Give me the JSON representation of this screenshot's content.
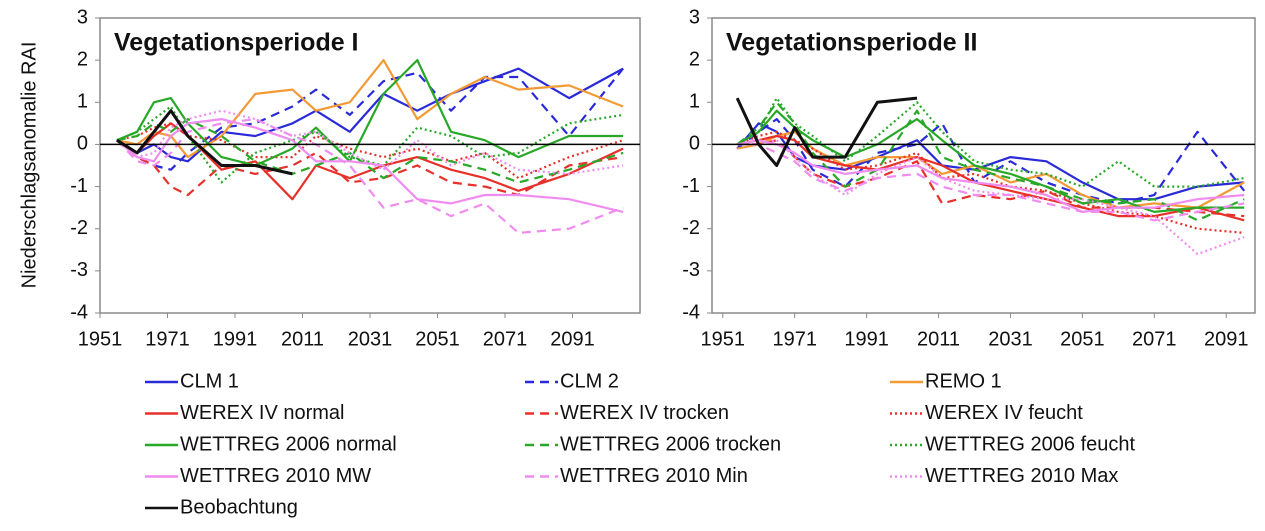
{
  "chart_data": [
    {
      "type": "line",
      "title": "Vegetationsperiode I",
      "ylabel": "Niederschlagsanomalie RAI",
      "x": [
        1956,
        1962,
        1967,
        1972,
        1977,
        1987,
        1997,
        2008,
        2015,
        2025,
        2035,
        2045,
        2055,
        2065,
        2075,
        2090,
        2106
      ],
      "xlim": [
        1951,
        2111
      ],
      "xticks": [
        1951,
        1971,
        1991,
        2011,
        2031,
        2051,
        2071,
        2091
      ],
      "ylim": [
        -4,
        3
      ],
      "yticks": [
        -4,
        -3,
        -2,
        -1,
        0,
        1,
        2,
        3
      ],
      "series": [
        {
          "name": "CLM 1",
          "color": "#2a2ad8",
          "dash": "solid",
          "values": [
            0.1,
            -0.2,
            0,
            -0.3,
            -0.4,
            0.3,
            0.2,
            0.5,
            0.8,
            0.3,
            1.2,
            0.8,
            1.2,
            1.5,
            1.8,
            1.1,
            1.8
          ]
        },
        {
          "name": "CLM 2",
          "color": "#2a2ad8",
          "dash": "dashed",
          "values": [
            0.1,
            -0.3,
            -0.5,
            -0.6,
            -0.2,
            0.4,
            0.5,
            0.9,
            1.3,
            0.7,
            1.5,
            1.7,
            0.8,
            1.6,
            1.6,
            0.2,
            1.8
          ]
        },
        {
          "name": "REMO 1",
          "color": "#f39a35",
          "dash": "solid",
          "values": [
            0.1,
            0,
            0.3,
            0.2,
            -0.3,
            0.2,
            1.2,
            1.3,
            0.8,
            1.0,
            2.0,
            0.6,
            1.2,
            1.6,
            1.3,
            1.4,
            0.9
          ]
        },
        {
          "name": "WEREX IV normal",
          "color": "#e8302a",
          "dash": "solid",
          "values": [
            0.1,
            -0.2,
            0.2,
            0.5,
            0.2,
            -0.6,
            -0.4,
            -1.3,
            -0.5,
            -0.8,
            -0.5,
            -0.3,
            -0.6,
            -0.8,
            -1.1,
            -0.7,
            -0.1
          ]
        },
        {
          "name": "WEREX IV trocken",
          "color": "#e8302a",
          "dash": "dashed",
          "values": [
            0.1,
            -0.3,
            -0.5,
            -1.0,
            -1.2,
            -0.5,
            -0.7,
            -0.5,
            -0.2,
            -0.9,
            -0.8,
            -0.5,
            -0.9,
            -1.0,
            -1.2,
            -0.5,
            -0.3
          ]
        },
        {
          "name": "WEREX IV feucht",
          "color": "#e8302a",
          "dash": "dotted",
          "values": [
            0.1,
            0.2,
            0.4,
            0.5,
            0.2,
            0.1,
            -0.3,
            -0.3,
            0.2,
            -0.1,
            -0.3,
            -0.1,
            -0.4,
            -0.2,
            -0.8,
            -0.3,
            0.1
          ]
        },
        {
          "name": "WETTREG 2006 normal",
          "color": "#28a828",
          "dash": "solid",
          "values": [
            0.1,
            0.3,
            1.0,
            1.1,
            0.5,
            -0.3,
            -0.5,
            -0.1,
            0.4,
            -0.4,
            1.2,
            2.0,
            0.3,
            0.1,
            -0.3,
            0.2,
            0.2
          ]
        },
        {
          "name": "WETTREG 2006 trocken",
          "color": "#28a828",
          "dash": "dashed",
          "values": [
            0.1,
            0.2,
            0.5,
            0.3,
            0.6,
            0.2,
            -0.4,
            -0.7,
            -0.5,
            -0.2,
            -0.8,
            -0.3,
            -0.4,
            -0.6,
            -0.9,
            -0.6,
            -0.2
          ]
        },
        {
          "name": "WETTREG 2006 feucht",
          "color": "#28a828",
          "dash": "dotted",
          "values": [
            0.1,
            0.3,
            0.6,
            0.9,
            0.2,
            -0.9,
            -0.2,
            0.1,
            0.3,
            -0.3,
            -0.5,
            0.4,
            0.2,
            -0.3,
            -0.2,
            0.5,
            0.7
          ]
        },
        {
          "name": "WETTREG 2010 MW",
          "color": "#f08cf0",
          "dash": "solid",
          "values": [
            0.1,
            -0.3,
            -0.4,
            0.2,
            0.5,
            0.6,
            0.4,
            0.1,
            -0.4,
            -0.4,
            -0.5,
            -1.3,
            -1.4,
            -1.2,
            -1.2,
            -1.3,
            -1.6
          ]
        },
        {
          "name": "WETTREG 2010 Min",
          "color": "#f08cf0",
          "dash": "dashed",
          "values": [
            0.1,
            -0.4,
            -0.5,
            -0.2,
            0.3,
            0.5,
            0.6,
            0.2,
            0.0,
            -0.5,
            -1.5,
            -1.3,
            -1.7,
            -1.4,
            -2.1,
            -2.0,
            -1.5
          ]
        },
        {
          "name": "WETTREG 2010 Max",
          "color": "#f08cf0",
          "dash": "dotted",
          "values": [
            0.1,
            -0.3,
            -0.2,
            0.4,
            0.6,
            0.8,
            0.6,
            0.2,
            0.3,
            -0.2,
            -0.6,
            0.1,
            -0.5,
            -0.2,
            -0.6,
            -0.7,
            -0.5
          ]
        },
        {
          "name": "Beobachtung",
          "color": "#111111",
          "dash": "solid",
          "values": [
            0.1,
            -0.2,
            0.3,
            0.8,
            0.2,
            -0.5,
            -0.5,
            -0.7,
            null,
            null,
            null,
            null,
            null,
            null,
            null,
            null,
            null
          ]
        }
      ]
    },
    {
      "type": "line",
      "title": "Vegetationsperiode II",
      "x": [
        1955,
        1961,
        1966,
        1971,
        1976,
        1985,
        1994,
        2005,
        2012,
        2021,
        2031,
        2041,
        2051,
        2061,
        2071,
        2083,
        2096
      ],
      "xlim": [
        1948,
        2099
      ],
      "xticks": [
        1951,
        1971,
        1991,
        2011,
        2031,
        2051,
        2071,
        2091
      ],
      "ylim": [
        -4,
        3
      ],
      "yticks": [
        -4,
        -3,
        -2,
        -1,
        0,
        1,
        2,
        3
      ],
      "series": [
        {
          "values": [
            -0.1,
            0.5,
            0.3,
            -0.3,
            -0.5,
            -0.6,
            -0.3,
            0.1,
            -0.5,
            -0.6,
            -0.3,
            -0.4,
            -0.9,
            -1.3,
            -1.3,
            -1.0,
            -0.9
          ]
        },
        {
          "values": [
            -0.1,
            0.3,
            0.6,
            0.1,
            -0.6,
            -1.0,
            -0.2,
            0.0,
            0.5,
            -0.9,
            -0.4,
            -0.9,
            -1.2,
            -1.4,
            -1.2,
            0.3,
            -1.1
          ]
        },
        {
          "values": [
            -0.1,
            0,
            0.2,
            0.3,
            -0.1,
            -0.5,
            -0.3,
            -0.3,
            -0.7,
            -0.5,
            -0.9,
            -0.7,
            -1.2,
            -1.5,
            -1.4,
            -1.5,
            -0.9
          ]
        },
        {
          "values": [
            0,
            0.1,
            0.2,
            0.1,
            -0.3,
            -0.5,
            -0.6,
            -0.3,
            -0.5,
            -0.9,
            -1.1,
            -1.3,
            -1.5,
            -1.7,
            -1.7,
            -1.5,
            -1.8
          ]
        },
        {
          "values": [
            0,
            0,
            0.1,
            -0.3,
            -0.7,
            -1.0,
            -0.8,
            -0.4,
            -1.4,
            -1.2,
            -1.3,
            -1.1,
            -1.5,
            -1.5,
            -1.5,
            -1.6,
            -1.7
          ]
        },
        {
          "values": [
            0,
            0.2,
            0.3,
            0.1,
            -0.1,
            -0.6,
            -0.5,
            -0.2,
            -0.8,
            -0.7,
            -1.0,
            -1.1,
            -1.4,
            -1.6,
            -1.7,
            -2.0,
            -2.1
          ]
        },
        {
          "values": [
            0,
            0.3,
            0.8,
            0.4,
            0.1,
            -0.3,
            0,
            0.6,
            0.1,
            -0.5,
            -0.7,
            -1.0,
            -1.4,
            -1.3,
            -1.6,
            -1.5,
            -1.5
          ]
        },
        {
          "values": [
            0,
            0.4,
            1.0,
            0.5,
            -0.2,
            -1.0,
            -0.6,
            0.8,
            -0.3,
            -0.6,
            -0.8,
            -1.0,
            -1.3,
            -1.4,
            -1.3,
            -1.8,
            -1.3
          ]
        },
        {
          "values": [
            0,
            0.3,
            1.1,
            0.5,
            0.2,
            -0.4,
            0.2,
            1.0,
            0.3,
            -0.4,
            -0.6,
            -0.7,
            -1.0,
            -0.4,
            -1.0,
            -1.0,
            -0.8
          ]
        },
        {
          "values": [
            0,
            0.1,
            0,
            -0.2,
            -0.5,
            -0.7,
            -0.6,
            -0.5,
            -0.8,
            -0.9,
            -1.0,
            -1.2,
            -1.6,
            -1.5,
            -1.5,
            -1.3,
            -1.2
          ]
        },
        {
          "values": [
            0,
            0,
            -0.2,
            -0.4,
            -0.8,
            -1.1,
            -0.8,
            -0.7,
            -1.0,
            -1.2,
            -1.2,
            -1.4,
            -1.6,
            -1.6,
            -1.8,
            -1.6,
            -1.4
          ]
        },
        {
          "values": [
            0,
            0,
            0.1,
            -0.3,
            -0.7,
            -1.2,
            -0.7,
            -0.3,
            -0.8,
            -1.1,
            -1.2,
            -1.3,
            -1.3,
            -1.5,
            -1.7,
            -2.6,
            -2.2
          ]
        },
        {
          "values": [
            1.1,
            0,
            -0.5,
            0.4,
            -0.3,
            -0.3,
            1.0,
            1.1,
            null,
            null,
            null,
            null,
            null,
            null,
            null,
            null,
            null
          ]
        }
      ]
    }
  ]
}
